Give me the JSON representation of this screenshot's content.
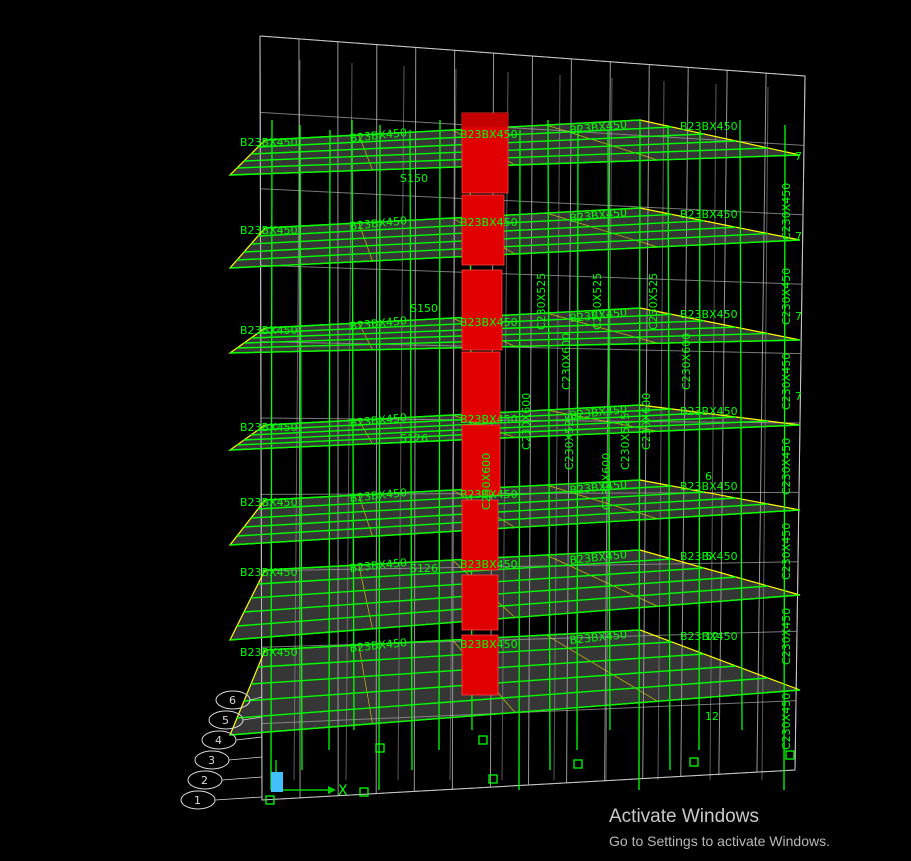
{
  "viewport": {
    "background": "#000000",
    "colors": {
      "wireframe": "#c8c8c8",
      "frame_members": "#00ff00",
      "slab_edge": "#ffff00",
      "slab_fill": "#9a9a9a",
      "shear_wall": "#e00000",
      "axis": "#00d000",
      "origin_marker": "#40c0ff"
    },
    "axis_label": "X",
    "grid_bubbles": [
      "1",
      "2",
      "3",
      "4",
      "5",
      "6"
    ],
    "beam_labels": [
      "B23BX450",
      "B23BX450",
      "B23BX450",
      "B23BX450",
      "B23BX450",
      "B23BX450",
      "B23BX450",
      "B23BX450"
    ],
    "column_labels": [
      "C230X450",
      "C230X450",
      "C230X450",
      "C230X450",
      "C230X450",
      "C230X450",
      "C230X450"
    ],
    "column_labels_interior": [
      "C230X600",
      "C230X600",
      "C230X600",
      "C230X600",
      "C230X600",
      "C230X600"
    ],
    "column_labels_mid": [
      "C230X525",
      "C230X525",
      "C230X525",
      "C230X525",
      "C230X525"
    ],
    "slab_labels": [
      "S150",
      "S150",
      "S126",
      "S126"
    ],
    "joint_labels": [
      "7",
      "7",
      "7",
      "7",
      "6",
      "5",
      "12",
      "12"
    ]
  },
  "watermark": {
    "title": "Activate Windows",
    "subtitle": "Go to Settings to activate Windows."
  }
}
